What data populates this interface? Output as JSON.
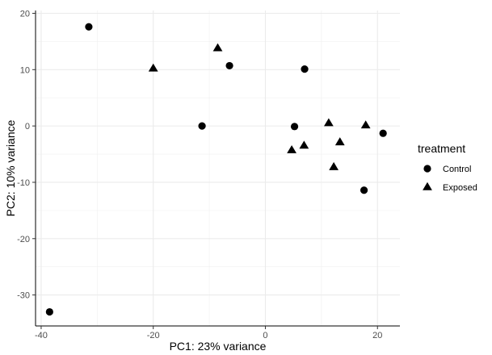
{
  "chart_data": {
    "type": "scatter",
    "xlabel": "PC1: 23% variance",
    "ylabel": "PC2: 10% variance",
    "xlim": [
      -41,
      24
    ],
    "ylim": [
      -35.5,
      20.5
    ],
    "x_ticks": [
      -40,
      -20,
      0,
      20
    ],
    "y_ticks": [
      20,
      10,
      0,
      -10,
      -20,
      -30
    ],
    "x_tick_labels": [
      "-40",
      "-20",
      "0",
      "20"
    ],
    "y_tick_labels": [
      "20",
      "10",
      "0",
      "-10",
      "-20",
      "-30"
    ],
    "grid": true,
    "legend": {
      "title": "treatment",
      "placement": "right",
      "entries": [
        {
          "label": "Control",
          "shape": "circle"
        },
        {
          "label": "Exposed",
          "shape": "triangle"
        }
      ]
    },
    "series": [
      {
        "name": "Control",
        "shape": "circle",
        "color": "#000000",
        "points": [
          {
            "x": -31.5,
            "y": 17.6
          },
          {
            "x": -6.4,
            "y": 10.7
          },
          {
            "x": 7.0,
            "y": 10.1
          },
          {
            "x": -11.3,
            "y": 0.0
          },
          {
            "x": 5.2,
            "y": -0.1
          },
          {
            "x": 21.0,
            "y": -1.3
          },
          {
            "x": 17.6,
            "y": -11.4
          },
          {
            "x": -38.5,
            "y": -33.0
          }
        ]
      },
      {
        "name": "Exposed",
        "shape": "triangle",
        "color": "#000000",
        "points": [
          {
            "x": -20.0,
            "y": 10.2
          },
          {
            "x": -8.5,
            "y": 13.8
          },
          {
            "x": 11.3,
            "y": 0.5
          },
          {
            "x": 17.9,
            "y": 0.1
          },
          {
            "x": 4.7,
            "y": -4.3
          },
          {
            "x": 6.9,
            "y": -3.5
          },
          {
            "x": 13.3,
            "y": -2.9
          },
          {
            "x": 12.2,
            "y": -7.3
          }
        ]
      }
    ]
  }
}
